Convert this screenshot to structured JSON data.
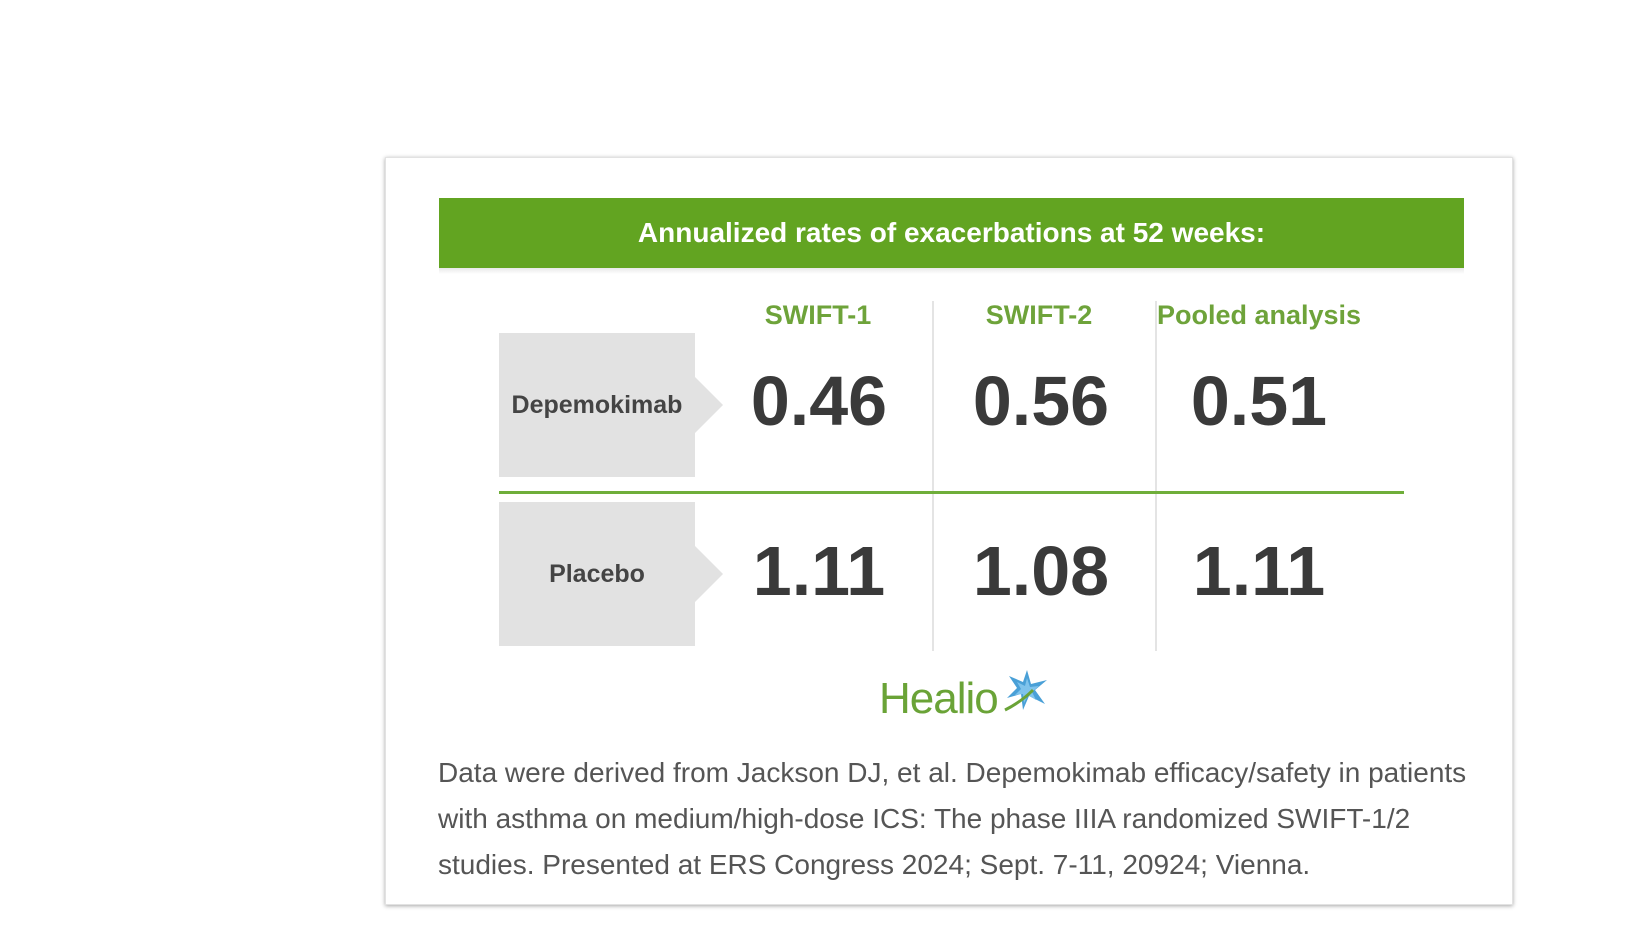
{
  "header": {
    "title": "Annualized rates of exacerbations at 52 weeks:"
  },
  "columns": [
    "SWIFT-1",
    "SWIFT-2",
    "Pooled analysis"
  ],
  "rows": [
    {
      "label": "Depemokimab",
      "values": [
        "0.46",
        "0.56",
        "0.51"
      ]
    },
    {
      "label": "Placebo",
      "values": [
        "1.11",
        "1.08",
        "1.11"
      ]
    }
  ],
  "logo": {
    "text": "Healio",
    "icon": "star-burst-icon"
  },
  "citation": "Data were derived from Jackson DJ, et al. Depemokimab efficacy/safety in patients with asthma on medium/high-dose ICS: The phase IIIA randomized SWIFT-1/2 studies. Presented at ERS Congress 2024; Sept. 7-11, 20924; Vienna.",
  "colors": {
    "header_green": "#62a421",
    "accent_green": "#6ea33a",
    "label_gray": "#e2e2e2",
    "value_text": "#3a3a3a"
  }
}
